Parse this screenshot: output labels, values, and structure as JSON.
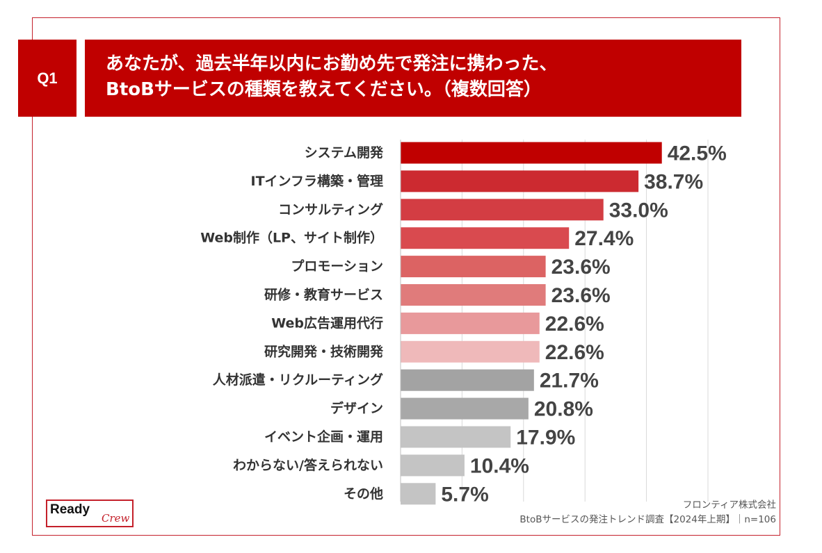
{
  "header": {
    "q_label": "Q1",
    "title_line1": "あなたが、過去半年以内にお勤め先で発注に携わった、",
    "title_line2": "BtoBサービスの種類を教えてください。（複数回答）"
  },
  "chart_data": {
    "type": "bar",
    "orientation": "horizontal",
    "title": "あなたが、過去半年以内にお勤め先で発注に携わった、BtoBサービスの種類を教えてください。（複数回答）",
    "xlim": [
      0,
      50
    ],
    "categories": [
      "システム開発",
      "ITインフラ構築・管理",
      "コンサルティング",
      "Web制作（LP、サイト制作）",
      "プロモーション",
      "研修・教育サービス",
      "Web広告運用代行",
      "研究開発・技術開発",
      "人材派遣・リクルーティング",
      "デザイン",
      "イベント企画・運用",
      "わからない/答えられない",
      "その他"
    ],
    "values": [
      42.5,
      38.7,
      33.0,
      27.4,
      23.6,
      23.6,
      22.6,
      22.6,
      21.7,
      20.8,
      17.9,
      10.4,
      5.7
    ],
    "value_labels": [
      "42.5%",
      "38.7%",
      "33.0%",
      "27.4%",
      "23.6%",
      "23.6%",
      "22.6%",
      "22.6%",
      "21.7%",
      "20.8%",
      "17.9%",
      "10.4%",
      "5.7%"
    ],
    "colors": [
      "#c00000",
      "#cc2a30",
      "#d33d43",
      "#d94a4f",
      "#dc6363",
      "#e07b7b",
      "#e8999b",
      "#efb9ba",
      "#a3a3a3",
      "#a8a8a8",
      "#c4c4c4",
      "#c4c4c4",
      "#c4c4c4"
    ],
    "gridline_color": "#d9d9d9"
  },
  "footer": {
    "source_line1": "フロンティア株式会社",
    "source_line2": "BtoBサービスの発注トレンド調査【2024年上期】｜n=106"
  },
  "logo": {
    "main": "Ready",
    "script": "Crew"
  }
}
